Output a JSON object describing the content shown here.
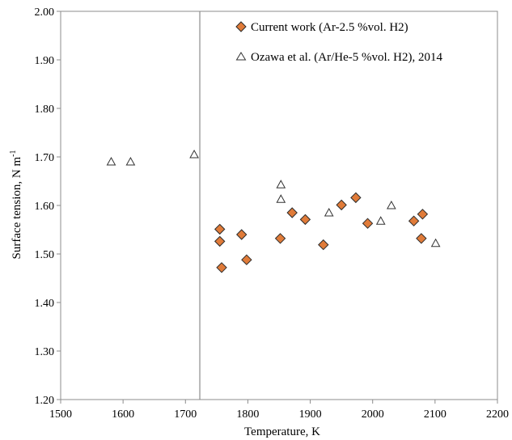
{
  "chart_data": {
    "type": "scatter",
    "xlabel": "Temperature,  K",
    "ylabel_main": "Surface  tension,  N m",
    "ylabel_sup": "-1",
    "xlim": [
      1500,
      2200
    ],
    "ylim": [
      1.2,
      2.0
    ],
    "xticks": [
      1500,
      1600,
      1700,
      1800,
      1900,
      2000,
      2100,
      2200
    ],
    "yticks": [
      "1.20",
      "1.30",
      "1.40",
      "1.50",
      "1.60",
      "1.70",
      "1.80",
      "1.90",
      "2.00"
    ],
    "grid": false,
    "legend_position": "top-right",
    "reference_line_x": 1723,
    "series": [
      {
        "name": "Current work (Ar-2.5 %vol. H2)",
        "marker": "diamond",
        "color": "#e07b39",
        "points": [
          [
            1755,
            1.551
          ],
          [
            1755,
            1.526
          ],
          [
            1758,
            1.472
          ],
          [
            1790,
            1.54
          ],
          [
            1798,
            1.488
          ],
          [
            1852,
            1.532
          ],
          [
            1871,
            1.585
          ],
          [
            1892,
            1.571
          ],
          [
            1921,
            1.519
          ],
          [
            1950,
            1.601
          ],
          [
            1973,
            1.616
          ],
          [
            1992,
            1.563
          ],
          [
            2066,
            1.568
          ],
          [
            2078,
            1.532
          ],
          [
            2080,
            1.582
          ]
        ]
      },
      {
        "name": "Ozawa et al. (Ar/He-5 %vol. H2), 2014",
        "marker": "triangle",
        "color": "#ffffff",
        "points": [
          [
            1581,
            1.69
          ],
          [
            1612,
            1.69
          ],
          [
            1714,
            1.705
          ],
          [
            1853,
            1.643
          ],
          [
            1853,
            1.613
          ],
          [
            1930,
            1.585
          ],
          [
            2013,
            1.568
          ],
          [
            2030,
            1.6
          ],
          [
            2101,
            1.522
          ]
        ]
      }
    ]
  }
}
